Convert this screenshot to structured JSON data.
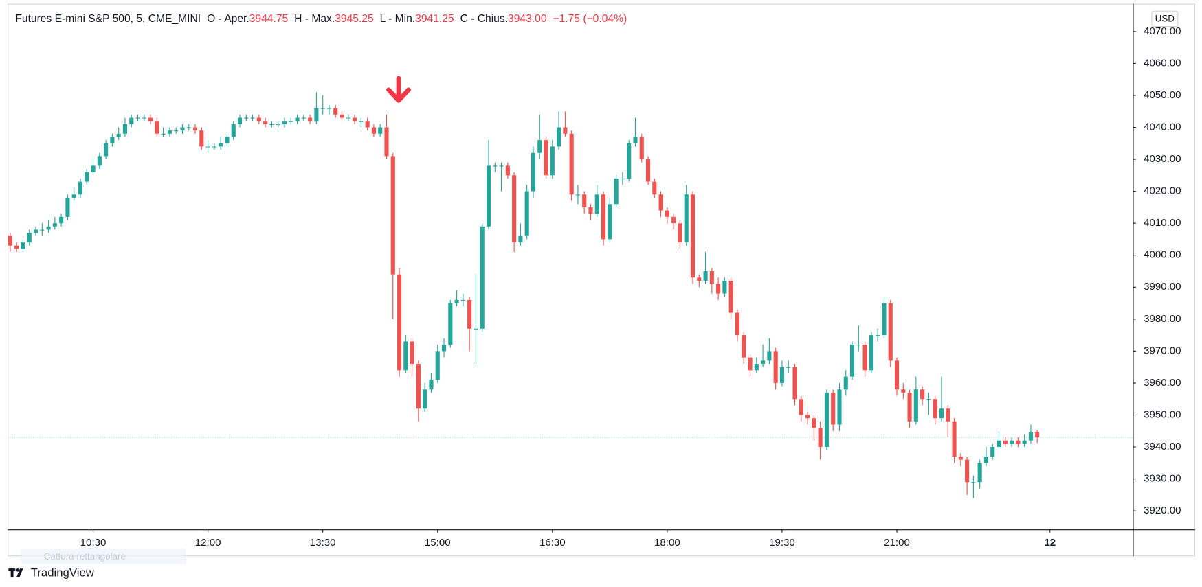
{
  "header": {
    "title": "Futures E-mini S&P 500, 5, CME_MINI",
    "open_label": "O - Aper.",
    "open": "3944.75",
    "high_label": "H - Max.",
    "high": "3945.25",
    "low_label": "L - Min.",
    "low": "3941.25",
    "close_label": "C - Chius.",
    "close": "3943.00",
    "change": "−1.75 (−0.04%)"
  },
  "currency": "USD",
  "tooltip": "Cattura rettangolare",
  "brand": "TradingView",
  "chart_data": {
    "type": "candlestick",
    "open": [
      4006,
      4003,
      4002,
      4004,
      4007,
      4008,
      4008,
      4009,
      4010,
      4012,
      4018,
      4019,
      4023,
      4026,
      4028,
      4031,
      4035,
      4037,
      4038,
      4041,
      4043,
      4043,
      4043,
      4042,
      4038,
      4038,
      4039,
      4039,
      4040,
      4040,
      4039,
      4034,
      4034,
      4034,
      4035,
      4037,
      4041,
      4043,
      4043,
      4043,
      4042,
      4041,
      4041,
      4041,
      4042,
      4042,
      4043,
      4043,
      4042,
      4046,
      4046,
      4046,
      4044,
      4043,
      4043,
      4042,
      4042,
      4040,
      4038,
      4040,
      4031,
      3994,
      3964,
      3973,
      3966,
      3952,
      3958,
      3961,
      3970,
      3972,
      3985,
      3986,
      3986,
      3977,
      3977,
      4009,
      4028,
      4028,
      4028,
      4025,
      4004,
      4006,
      4020,
      4032,
      4036,
      4025,
      4034,
      4040,
      4038,
      4019,
      4019,
      4015,
      4013,
      4019,
      4005,
      4016,
      4024,
      4024,
      4035,
      4037,
      4030,
      4023,
      4019,
      4014,
      4012,
      4010,
      4004,
      4019,
      3993,
      3992,
      3995,
      3991,
      3988,
      3992,
      3982,
      3975,
      3968,
      3964,
      3966,
      3967,
      3970,
      3960,
      3965,
      3965,
      3955,
      3950,
      3949,
      3946,
      3940,
      3957,
      3947,
      3958,
      3962,
      3972,
      3972,
      3964,
      3975,
      3975,
      3985,
      3967,
      3958,
      3957,
      3948,
      3958,
      3955,
      3955,
      3949,
      3952,
      3948,
      3937,
      3936,
      3929,
      3929,
      3935,
      3937,
      3940,
      3942,
      3941,
      3942,
      3941,
      3942,
      3944.75
    ],
    "high": [
      4007,
      4004,
      4005,
      4008,
      4009,
      4010,
      4011,
      4012,
      4013,
      4019,
      4021,
      4024,
      4027,
      4030,
      4032,
      4036,
      4038,
      4040,
      4043,
      4044,
      4044,
      4044,
      4044,
      4043,
      4040,
      4040,
      4040,
      4041,
      4041,
      4041,
      4040,
      4036,
      4035,
      4037,
      4038,
      4042,
      4044,
      4044,
      4044,
      4044,
      4043,
      4042,
      4042,
      4043,
      4043,
      4044,
      4044,
      4044,
      4051,
      4050,
      4047,
      4047,
      4045,
      4044,
      4044,
      4043,
      4043,
      4041,
      4041,
      4044,
      4032,
      3996,
      3975,
      3974,
      3967,
      3960,
      3963,
      3972,
      3974,
      3986,
      3989,
      3988,
      3987,
      3994,
      4010,
      4036,
      4029,
      4029,
      4029,
      4026,
      4010,
      4022,
      4034,
      4044,
      4037,
      4036,
      4045,
      4045,
      4039,
      4022,
      4020,
      4016,
      4022,
      4020,
      4018,
      4025,
      4026,
      4036,
      4043,
      4038,
      4031,
      4024,
      4020,
      4015,
      4013,
      4011,
      4022,
      4020,
      3994,
      4001,
      3996,
      3993,
      3993,
      3993,
      3983,
      3976,
      3969,
      3968,
      3972,
      3974,
      3971,
      3967,
      3967,
      3966,
      3956,
      3951,
      3950,
      3948,
      3958,
      3958,
      3960,
      3964,
      3973,
      3978,
      3973,
      3976,
      3977,
      3987,
      3986,
      3968,
      3960,
      3958,
      3962,
      3959,
      3957,
      3956,
      3962,
      3953,
      3949,
      3938,
      3937,
      3931,
      3936,
      3940,
      3941,
      3945,
      3943,
      3943,
      3943,
      3944,
      3947,
      3945.25
    ],
    "low": [
      4001,
      4001,
      4001,
      4003,
      4006,
      4006,
      4007,
      4008,
      4009,
      4011,
      4017,
      4018,
      4022,
      4025,
      4027,
      4030,
      4034,
      4036,
      4037,
      4040,
      4042,
      4042,
      4041,
      4037,
      4037,
      4037,
      4038,
      4038,
      4039,
      4038,
      4033,
      4032,
      4033,
      4033,
      4034,
      4036,
      4040,
      4042,
      4042,
      4041,
      4040,
      4040,
      4040,
      4040,
      4041,
      4041,
      4042,
      4041,
      4041,
      4044,
      4044,
      4043,
      4042,
      4042,
      4041,
      4040,
      4039,
      4037,
      4037,
      4030,
      3980,
      3962,
      3963,
      3962,
      3948,
      3951,
      3957,
      3960,
      3968,
      3971,
      3984,
      3984,
      3970,
      3966,
      3976,
      4008,
      4026,
      4020,
      4024,
      4001,
      4003,
      4005,
      4018,
      4030,
      4024,
      4024,
      4033,
      4037,
      4017,
      4016,
      4013,
      4011,
      4012,
      4003,
      4004,
      4015,
      4022,
      4023,
      4034,
      4029,
      4022,
      4018,
      4012,
      4010,
      4008,
      4002,
      4003,
      3991,
      3990,
      3991,
      3988,
      3986,
      3987,
      3980,
      3973,
      3966,
      3962,
      3963,
      3965,
      3966,
      3958,
      3959,
      3963,
      3953,
      3948,
      3947,
      3942,
      3936,
      3939,
      3945,
      3945,
      3956,
      3961,
      3970,
      3962,
      3963,
      3973,
      3974,
      3965,
      3956,
      3955,
      3946,
      3947,
      3953,
      3950,
      3947,
      3948,
      3943,
      3935,
      3934,
      3925,
      3924,
      3927,
      3934,
      3936,
      3939,
      3940,
      3940,
      3940,
      3940,
      3941,
      3941.25
    ],
    "close": [
      4003,
      4002,
      4004,
      4007,
      4008,
      4008,
      4009,
      4010,
      4012,
      4018,
      4019,
      4023,
      4026,
      4028,
      4031,
      4035,
      4037,
      4038,
      4041,
      4043,
      4043,
      4043,
      4042,
      4038,
      4038,
      4039,
      4039,
      4040,
      4040,
      4039,
      4034,
      4034,
      4034,
      4035,
      4037,
      4041,
      4043,
      4043,
      4043,
      4042,
      4041,
      4041,
      4041,
      4042,
      4042,
      4043,
      4043,
      4042,
      4046,
      4046,
      4046,
      4044,
      4043,
      4043,
      4042,
      4042,
      4040,
      4038,
      4040,
      4031,
      3994,
      3964,
      3973,
      3966,
      3952,
      3958,
      3961,
      3970,
      3972,
      3985,
      3986,
      3986,
      3977,
      3977,
      4009,
      4028,
      4028,
      4028,
      4025,
      4004,
      4006,
      4020,
      4032,
      4036,
      4025,
      4034,
      4040,
      4038,
      4019,
      4019,
      4015,
      4013,
      4019,
      4005,
      4016,
      4024,
      4024,
      4035,
      4037,
      4030,
      4023,
      4019,
      4014,
      4012,
      4010,
      4004,
      4019,
      3993,
      3992,
      3995,
      3991,
      3988,
      3992,
      3982,
      3975,
      3968,
      3964,
      3966,
      3967,
      3970,
      3960,
      3965,
      3965,
      3955,
      3950,
      3949,
      3946,
      3940,
      3957,
      3947,
      3958,
      3962,
      3972,
      3972,
      3964,
      3975,
      3975,
      3985,
      3967,
      3958,
      3957,
      3948,
      3958,
      3955,
      3955,
      3949,
      3952,
      3948,
      3937,
      3936,
      3929,
      3929,
      3935,
      3937,
      3940,
      3942,
      3941,
      3942,
      3941,
      3942,
      3944.75,
      3943
    ],
    "up_color": "#26a69a",
    "down_color": "#ef5350",
    "xlim": [
      -0.4,
      176
    ],
    "xticks": [
      {
        "value": 13,
        "label": "10:30"
      },
      {
        "value": 31,
        "label": "12:00"
      },
      {
        "value": 49,
        "label": "13:30"
      },
      {
        "value": 67,
        "label": "15:00"
      },
      {
        "value": 85,
        "label": "16:30"
      },
      {
        "value": 103,
        "label": "18:00"
      },
      {
        "value": 121,
        "label": "19:30"
      },
      {
        "value": 139,
        "label": "21:00"
      },
      {
        "value": 163,
        "label": "12"
      }
    ],
    "ylim": [
      3914.2,
      4078.4
    ],
    "yticks": [
      {
        "value": 3920,
        "label": "3920.00"
      },
      {
        "value": 3930,
        "label": "3930.00"
      },
      {
        "value": 3940,
        "label": "3940.00"
      },
      {
        "value": 3950,
        "label": "3950.00"
      },
      {
        "value": 3960,
        "label": "3960.00"
      },
      {
        "value": 3970,
        "label": "3970.00"
      },
      {
        "value": 3980,
        "label": "3980.00"
      },
      {
        "value": 3990,
        "label": "3990.00"
      },
      {
        "value": 4000,
        "label": "4000.00"
      },
      {
        "value": 4010,
        "label": "4010.00"
      },
      {
        "value": 4020,
        "label": "4020.00"
      },
      {
        "value": 4030,
        "label": "4030.00"
      },
      {
        "value": 4040,
        "label": "4040.00"
      },
      {
        "value": 4050,
        "label": "4050.00"
      },
      {
        "value": 4060,
        "label": "4060.00"
      },
      {
        "value": 4070,
        "label": "4070.00"
      }
    ],
    "grid": false
  }
}
